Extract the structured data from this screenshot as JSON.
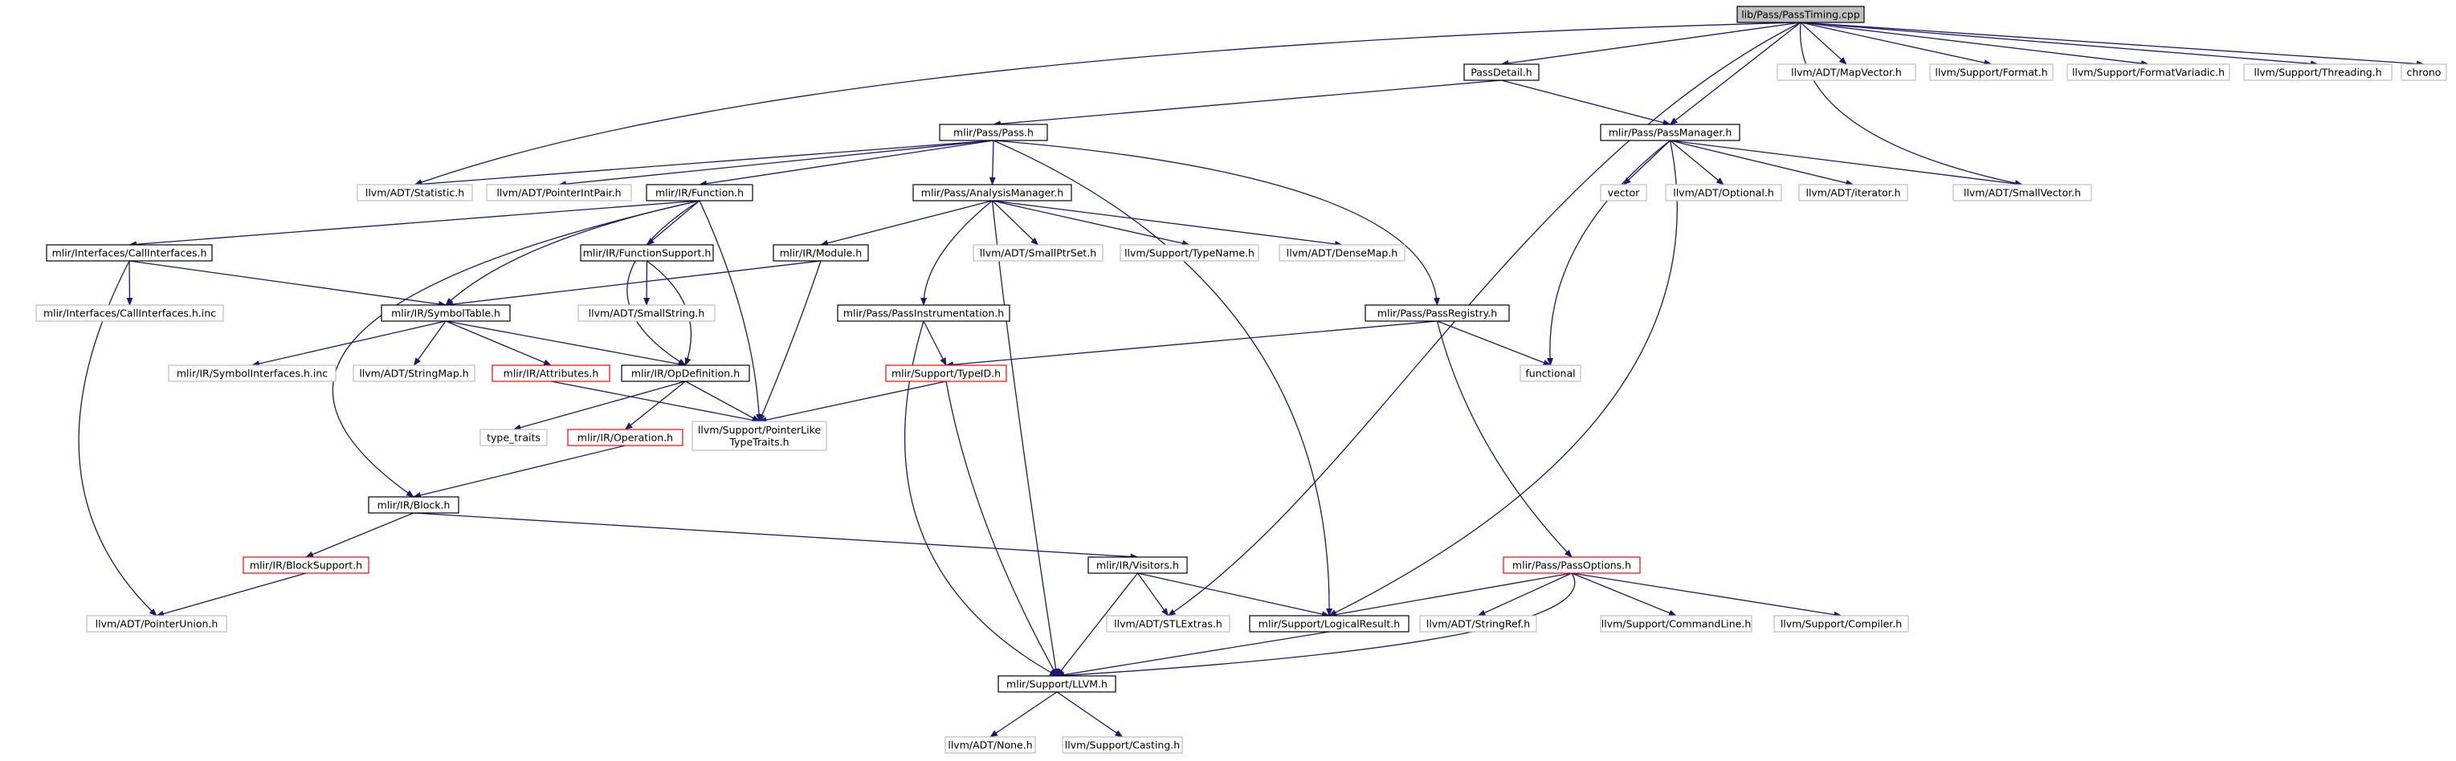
{
  "graph": {
    "kind": "include dependency graph",
    "colors": {
      "edge": "#191970",
      "root_fill": "#bfbfbf",
      "normal_border": "#000000",
      "external_border": "#bfbfbf",
      "truncated_border": "#ff0000",
      "text": "#000000"
    },
    "nodes": [
      {
        "id": "root",
        "label": "lib/Pass/PassTiming.cpp",
        "style": "root"
      },
      {
        "id": "passdetail",
        "label": "PassDetail.h",
        "style": "normal"
      },
      {
        "id": "mapvector",
        "label": "llvm/ADT/MapVector.h",
        "style": "external"
      },
      {
        "id": "format",
        "label": "llvm/Support/Format.h",
        "style": "external"
      },
      {
        "id": "formatvariadic",
        "label": "llvm/Support/FormatVariadic.h",
        "style": "external"
      },
      {
        "id": "threading",
        "label": "llvm/Support/Threading.h",
        "style": "external"
      },
      {
        "id": "chrono",
        "label": "chrono",
        "style": "external"
      },
      {
        "id": "pass",
        "label": "mlir/Pass/Pass.h",
        "style": "normal"
      },
      {
        "id": "passmanager",
        "label": "mlir/Pass/PassManager.h",
        "style": "normal"
      },
      {
        "id": "statistic",
        "label": "llvm/ADT/Statistic.h",
        "style": "external"
      },
      {
        "id": "pointerintpair",
        "label": "llvm/ADT/PointerIntPair.h",
        "style": "external"
      },
      {
        "id": "function",
        "label": "mlir/IR/Function.h",
        "style": "normal"
      },
      {
        "id": "analysismanager",
        "label": "mlir/Pass/AnalysisManager.h",
        "style": "normal"
      },
      {
        "id": "vector",
        "label": "vector",
        "style": "external"
      },
      {
        "id": "optional",
        "label": "llvm/ADT/Optional.h",
        "style": "external"
      },
      {
        "id": "iterator",
        "label": "llvm/ADT/iterator.h",
        "style": "external"
      },
      {
        "id": "smallvector",
        "label": "llvm/ADT/SmallVector.h",
        "style": "external"
      },
      {
        "id": "callinterfaces",
        "label": "mlir/Interfaces/CallInterfaces.h",
        "style": "normal"
      },
      {
        "id": "functionsupport",
        "label": "mlir/IR/FunctionSupport.h",
        "style": "normal"
      },
      {
        "id": "module",
        "label": "mlir/IR/Module.h",
        "style": "normal"
      },
      {
        "id": "smallptrset",
        "label": "llvm/ADT/SmallPtrSet.h",
        "style": "external"
      },
      {
        "id": "typename",
        "label": "llvm/Support/TypeName.h",
        "style": "external"
      },
      {
        "id": "densemap",
        "label": "llvm/ADT/DenseMap.h",
        "style": "external"
      },
      {
        "id": "callinterfacesinc",
        "label": "mlir/Interfaces/CallInterfaces.h.inc",
        "style": "external"
      },
      {
        "id": "symboltable",
        "label": "mlir/IR/SymbolTable.h",
        "style": "normal"
      },
      {
        "id": "smallstring",
        "label": "llvm/ADT/SmallString.h",
        "style": "external"
      },
      {
        "id": "passinstrumentation",
        "label": "mlir/Pass/PassInstrumentation.h",
        "style": "normal"
      },
      {
        "id": "passregistry",
        "label": "mlir/Pass/PassRegistry.h",
        "style": "normal"
      },
      {
        "id": "symbolinterfacesinc",
        "label": "mlir/IR/SymbolInterfaces.h.inc",
        "style": "external"
      },
      {
        "id": "stringmap",
        "label": "llvm/ADT/StringMap.h",
        "style": "external"
      },
      {
        "id": "attributes",
        "label": "mlir/IR/Attributes.h",
        "style": "truncated"
      },
      {
        "id": "opdefinition",
        "label": "mlir/IR/OpDefinition.h",
        "style": "normal"
      },
      {
        "id": "typeid",
        "label": "mlir/Support/TypeID.h",
        "style": "truncated"
      },
      {
        "id": "functional",
        "label": "functional",
        "style": "external"
      },
      {
        "id": "typetraits",
        "label": "type_traits",
        "style": "external"
      },
      {
        "id": "operation",
        "label": "mlir/IR/Operation.h",
        "style": "truncated"
      },
      {
        "id": "pointerliketypetraits",
        "label": [
          "llvm/Support/PointerLike",
          "TypeTraits.h"
        ],
        "style": "external"
      },
      {
        "id": "block",
        "label": "mlir/IR/Block.h",
        "style": "normal"
      },
      {
        "id": "blocksupport",
        "label": "mlir/IR/BlockSupport.h",
        "style": "truncated"
      },
      {
        "id": "visitors",
        "label": "mlir/IR/Visitors.h",
        "style": "normal"
      },
      {
        "id": "passoptions",
        "label": "mlir/Pass/PassOptions.h",
        "style": "truncated"
      },
      {
        "id": "pointerunion",
        "label": "llvm/ADT/PointerUnion.h",
        "style": "external"
      },
      {
        "id": "stlextras",
        "label": "llvm/ADT/STLExtras.h",
        "style": "external"
      },
      {
        "id": "logicalresult",
        "label": "mlir/Support/LogicalResult.h",
        "style": "normal"
      },
      {
        "id": "stringref",
        "label": "llvm/ADT/StringRef.h",
        "style": "external"
      },
      {
        "id": "commandline",
        "label": "llvm/Support/CommandLine.h",
        "style": "external"
      },
      {
        "id": "compiler",
        "label": "llvm/Support/Compiler.h",
        "style": "external"
      },
      {
        "id": "llvmh",
        "label": "mlir/Support/LLVM.h",
        "style": "normal"
      },
      {
        "id": "none",
        "label": "llvm/ADT/None.h",
        "style": "external"
      },
      {
        "id": "casting",
        "label": "llvm/Support/Casting.h",
        "style": "external"
      }
    ]
  }
}
